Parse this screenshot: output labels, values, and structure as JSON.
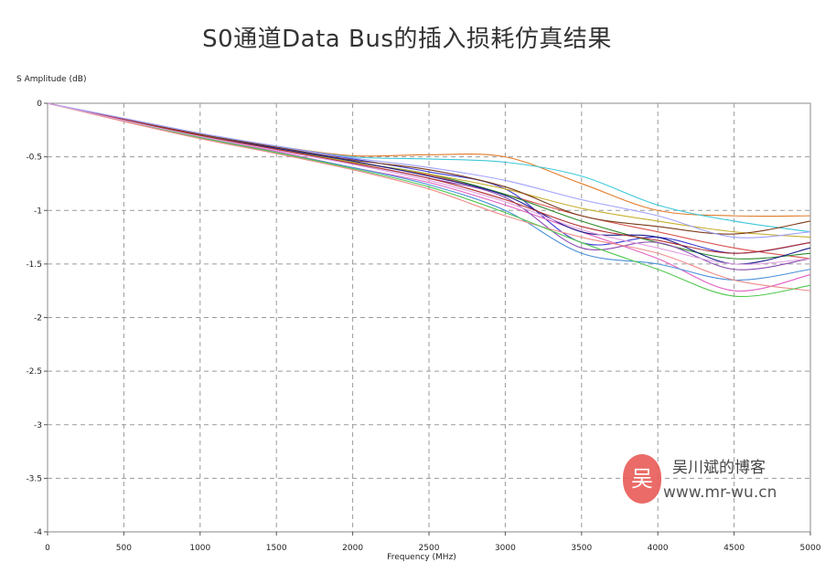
{
  "chart_data": {
    "type": "line",
    "title": "S0通道Data Bus的插入损耗仿真结果",
    "xlabel": "Frequency (MHz)",
    "ylabel": "S Amplitude (dB)",
    "xlim": [
      0,
      5000
    ],
    "ylim": [
      -4,
      0
    ],
    "x_ticks": [
      "0",
      "500",
      "1000",
      "1500",
      "2000",
      "2500",
      "3000",
      "3500",
      "4000",
      "4500",
      "5000"
    ],
    "y_ticks": [
      "0",
      "-0.5",
      "-1",
      "-1.5",
      "-2",
      "-2.5",
      "-3",
      "-3.5",
      "-4"
    ],
    "grid": true,
    "legend": "none",
    "x": [
      0,
      500,
      1000,
      1500,
      2000,
      2500,
      3000,
      3500,
      4000,
      4500,
      5000
    ],
    "series": [
      {
        "color": "#d9534f",
        "values": [
          0,
          -0.16,
          -0.31,
          -0.43,
          -0.55,
          -0.67,
          -0.85,
          -1.05,
          -1.2,
          -1.35,
          -1.45
        ]
      },
      {
        "color": "#3c3cd0",
        "values": [
          0,
          -0.15,
          -0.29,
          -0.4,
          -0.52,
          -0.64,
          -0.8,
          -1.3,
          -1.25,
          -1.4,
          -1.3
        ]
      },
      {
        "color": "#e07b2a",
        "values": [
          0,
          -0.15,
          -0.29,
          -0.4,
          -0.49,
          -0.48,
          -0.5,
          -0.75,
          -1.0,
          -1.05,
          -1.05
        ]
      },
      {
        "color": "#3cc8d8",
        "values": [
          0,
          -0.15,
          -0.29,
          -0.4,
          -0.5,
          -0.52,
          -0.55,
          -0.68,
          -0.95,
          -1.1,
          -1.2
        ]
      },
      {
        "color": "#e060c0",
        "values": [
          0,
          -0.16,
          -0.32,
          -0.45,
          -0.6,
          -0.74,
          -0.95,
          -1.2,
          -1.45,
          -1.75,
          -1.6
        ]
      },
      {
        "color": "#2a8a2a",
        "values": [
          0,
          -0.15,
          -0.3,
          -0.42,
          -0.55,
          -0.66,
          -0.85,
          -1.1,
          -1.3,
          -1.45,
          -1.4
        ]
      },
      {
        "color": "#8a4ab0",
        "values": [
          0,
          -0.16,
          -0.31,
          -0.44,
          -0.56,
          -0.7,
          -0.88,
          -1.35,
          -1.3,
          -1.55,
          -1.45
        ]
      },
      {
        "color": "#c8b030",
        "values": [
          0,
          -0.15,
          -0.3,
          -0.43,
          -0.55,
          -0.66,
          -0.8,
          -0.98,
          -1.1,
          -1.2,
          -1.25
        ]
      },
      {
        "color": "#4a90d9",
        "values": [
          0,
          -0.16,
          -0.32,
          -0.46,
          -0.6,
          -0.76,
          -1.0,
          -1.4,
          -1.5,
          -1.65,
          -1.55
        ]
      },
      {
        "color": "#7a3a1a",
        "values": [
          0,
          -0.15,
          -0.29,
          -0.41,
          -0.53,
          -0.62,
          -0.78,
          -1.05,
          -1.15,
          -1.22,
          -1.1
        ]
      },
      {
        "color": "#f08a8a",
        "values": [
          0,
          -0.17,
          -0.33,
          -0.47,
          -0.62,
          -0.8,
          -1.05,
          -1.25,
          -1.4,
          -1.65,
          -1.75
        ]
      },
      {
        "color": "#50c850",
        "values": [
          0,
          -0.16,
          -0.32,
          -0.46,
          -0.61,
          -0.78,
          -1.02,
          -1.3,
          -1.55,
          -1.8,
          -1.7
        ]
      },
      {
        "color": "#1a1a8a",
        "values": [
          0,
          -0.15,
          -0.3,
          -0.42,
          -0.54,
          -0.68,
          -0.86,
          -1.2,
          -1.25,
          -1.5,
          -1.35
        ]
      },
      {
        "color": "#b03030",
        "values": [
          0,
          -0.15,
          -0.3,
          -0.43,
          -0.56,
          -0.7,
          -0.9,
          -1.15,
          -1.28,
          -1.4,
          -1.3
        ]
      },
      {
        "color": "#a0a0ff",
        "values": [
          0,
          -0.14,
          -0.28,
          -0.4,
          -0.51,
          -0.6,
          -0.72,
          -0.9,
          -1.05,
          -1.25,
          -1.2
        ]
      },
      {
        "color": "#e0a0e0",
        "values": [
          0,
          -0.16,
          -0.31,
          -0.44,
          -0.57,
          -0.72,
          -0.92,
          -1.18,
          -1.35,
          -1.5,
          -1.45
        ]
      }
    ]
  },
  "watermark": {
    "badge": "吴",
    "name": "吴川斌的博客",
    "url": "www.mr-wu.cn"
  }
}
